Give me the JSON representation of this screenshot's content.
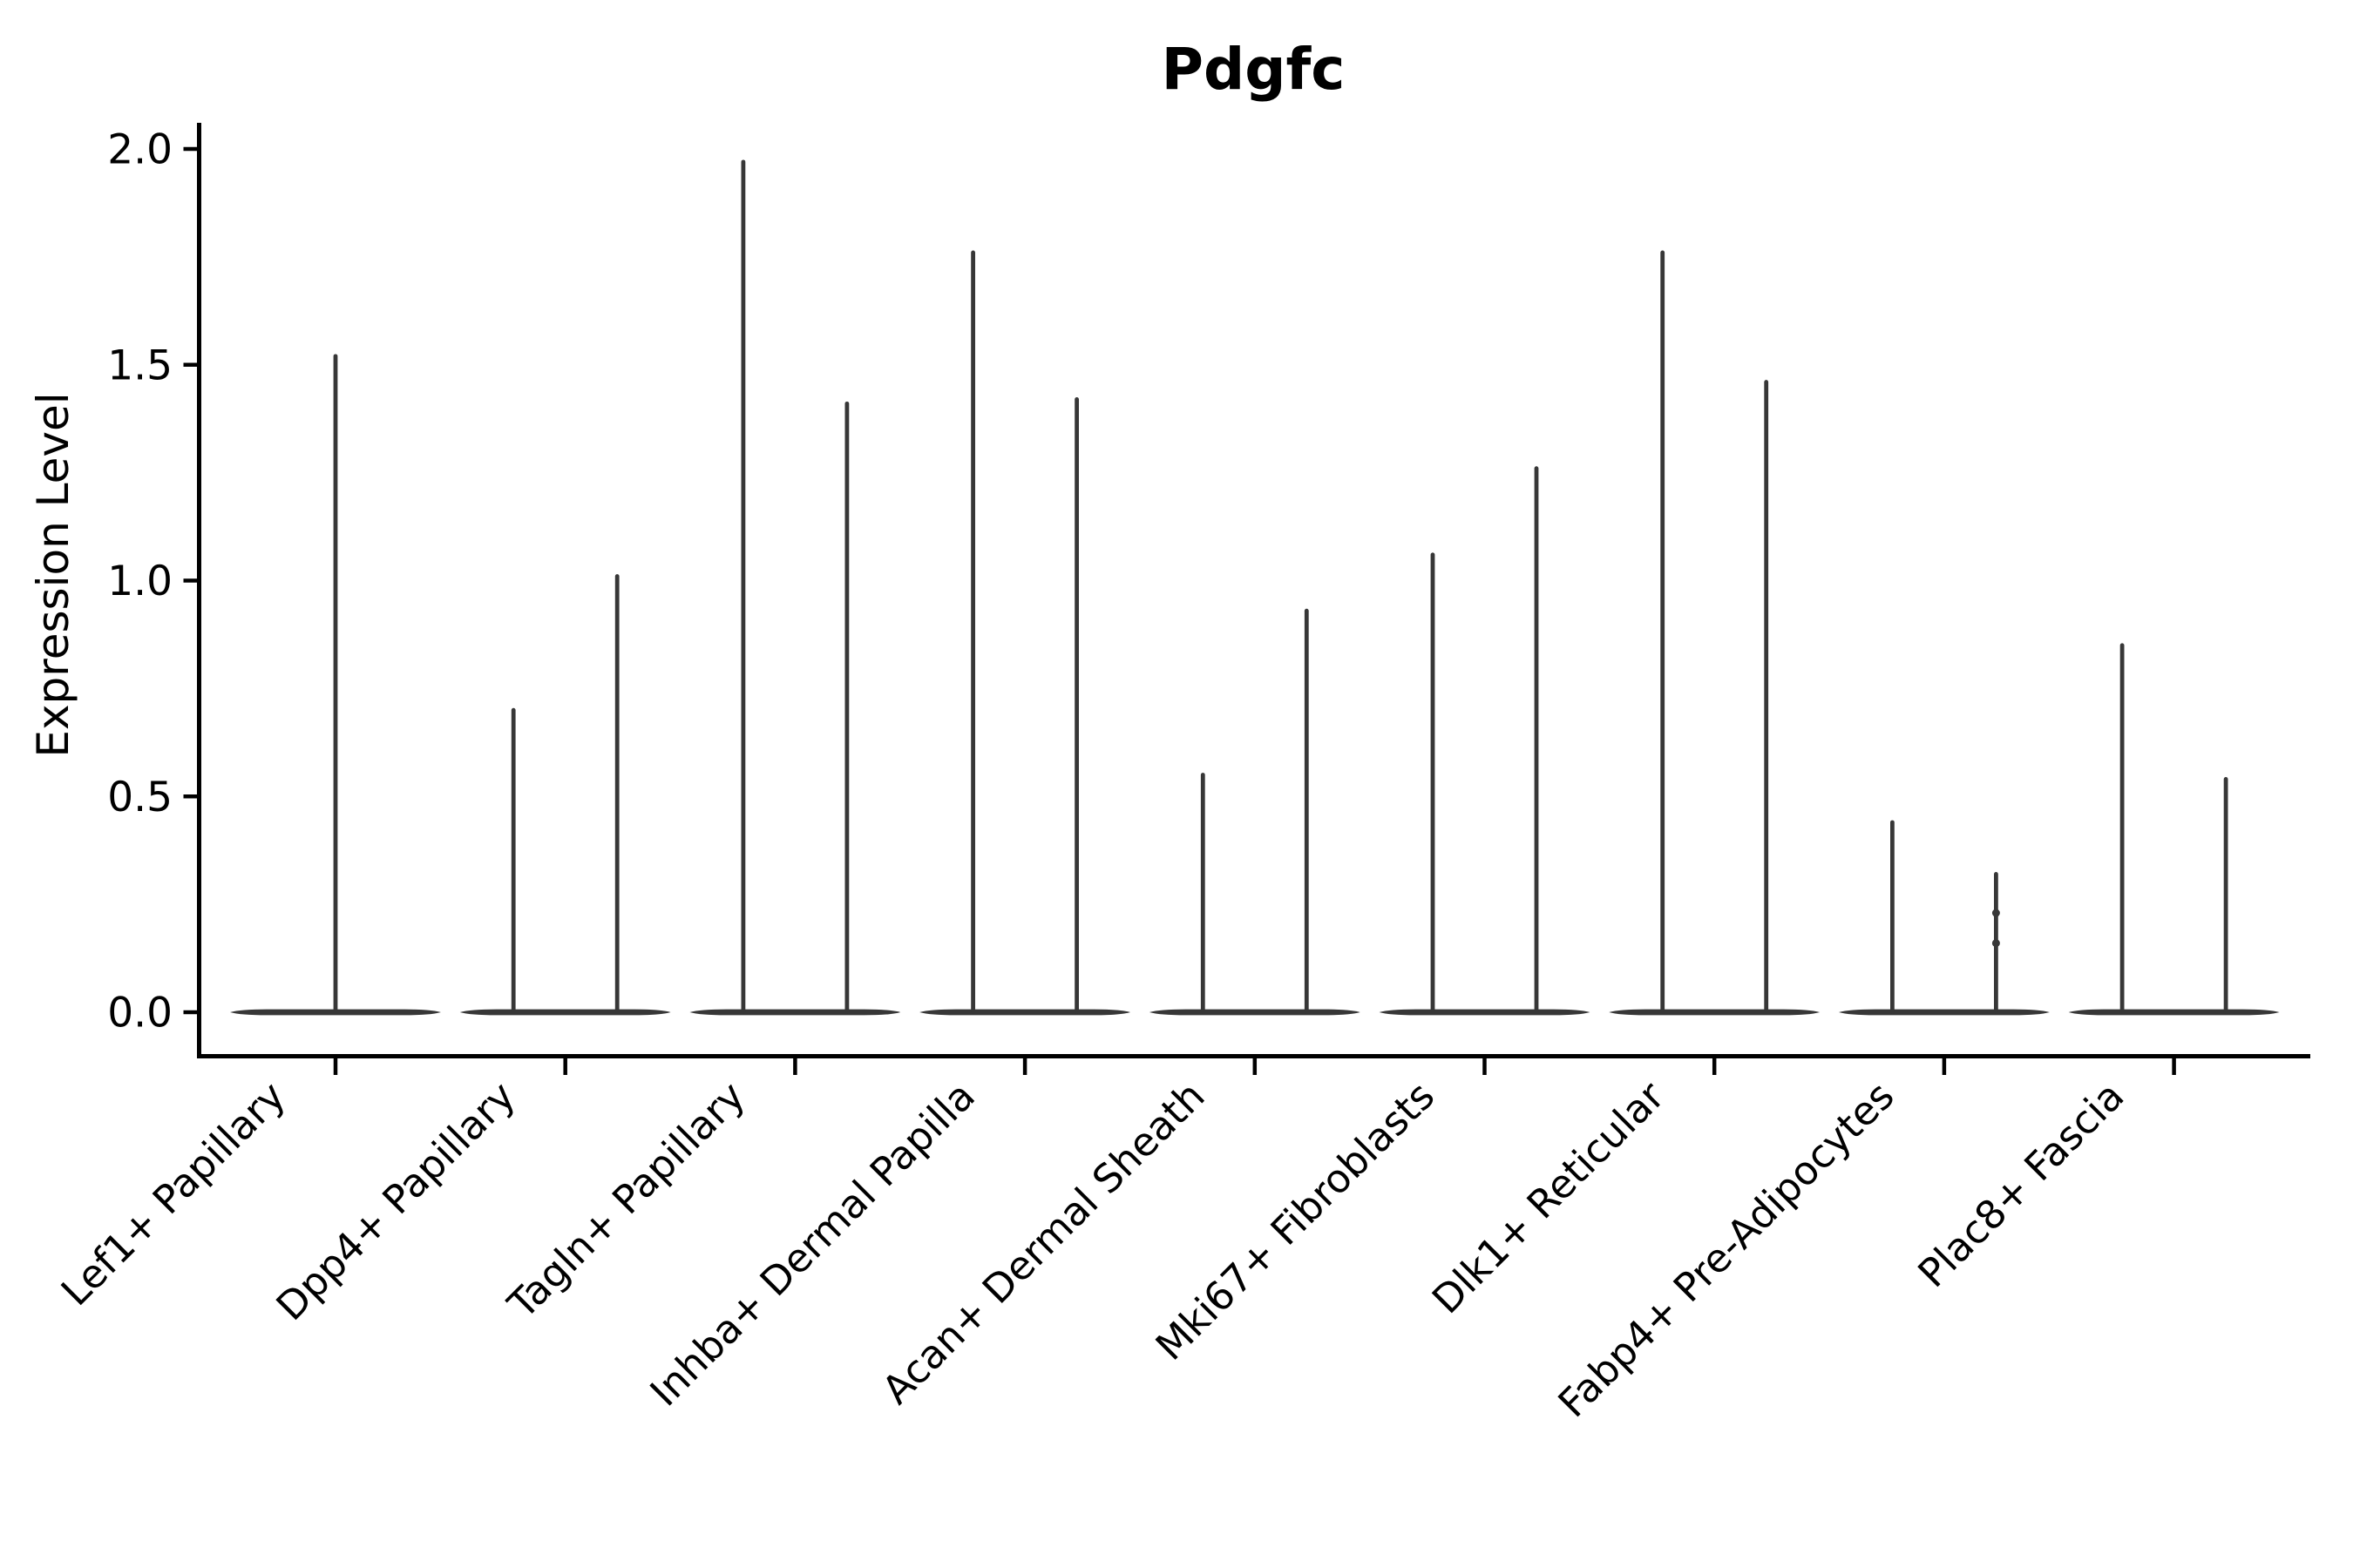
{
  "figure": {
    "title": "Pdgfc",
    "ylabel": "Expression Level",
    "background": "#ffffff",
    "violin_color": "#373737",
    "axis_color": "#000000",
    "text_color": "#000000"
  },
  "chart_data": {
    "type": "violin",
    "title": "Pdgfc",
    "xlabel": "",
    "ylabel": "Expression Level",
    "ylim": [
      0.0,
      2.06
    ],
    "yticks": [
      0.0,
      0.5,
      1.0,
      1.5,
      2.0
    ],
    "ytick_labels": [
      "0.0",
      "0.5",
      "1.0",
      "1.5",
      "2.0"
    ],
    "grid": false,
    "legend": "none",
    "x_tick_rotation": 45,
    "categories": [
      "Lef1+ Papillary",
      "Dpp4+ Papillary",
      "Tagln+ Papillary",
      "Inhba+ Dermal Papilla",
      "Acan+ Dermal Sheath",
      "Mki67+ Fibroblasts",
      "Dlk1+ Reticular",
      "Fabp4+ Pre-Adipocytes",
      "Plac8+ Fascia"
    ],
    "series": [
      {
        "category": "Lef1+ Papillary",
        "violins": [
          {
            "max": 1.52,
            "points": []
          }
        ]
      },
      {
        "category": "Dpp4+ Papillary",
        "violins": [
          {
            "max": 0.7,
            "points": []
          },
          {
            "max": 1.01,
            "points": []
          }
        ]
      },
      {
        "category": "Tagln+ Papillary",
        "violins": [
          {
            "max": 1.97,
            "points": []
          },
          {
            "max": 1.41,
            "points": []
          }
        ]
      },
      {
        "category": "Inhba+ Dermal Papilla",
        "violins": [
          {
            "max": 1.76,
            "points": []
          },
          {
            "max": 1.42,
            "points": []
          }
        ]
      },
      {
        "category": "Acan+ Dermal Sheath",
        "violins": [
          {
            "max": 0.55,
            "points": []
          },
          {
            "max": 0.93,
            "points": []
          }
        ]
      },
      {
        "category": "Mki67+ Fibroblasts",
        "violins": [
          {
            "max": 1.06,
            "points": []
          },
          {
            "max": 1.26,
            "points": []
          }
        ]
      },
      {
        "category": "Dlk1+ Reticular",
        "violins": [
          {
            "max": 1.76,
            "points": []
          },
          {
            "max": 1.46,
            "points": []
          }
        ]
      },
      {
        "category": "Fabp4+ Pre-Adipocytes",
        "violins": [
          {
            "max": 0.44,
            "points": []
          },
          {
            "max": 0.32,
            "points": [
              0.23,
              0.16
            ]
          }
        ]
      },
      {
        "category": "Plac8+ Fascia",
        "violins": [
          {
            "max": 0.85,
            "points": []
          },
          {
            "max": 0.54,
            "points": []
          }
        ]
      }
    ],
    "baseline_value": 0.0
  }
}
